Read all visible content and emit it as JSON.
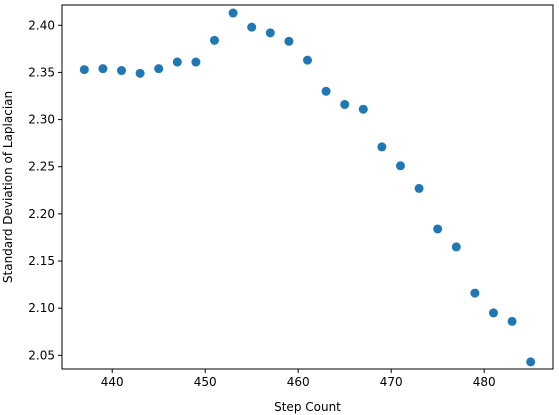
{
  "chart_data": {
    "type": "scatter",
    "title": "",
    "xlabel": "Step Count",
    "ylabel": "Standard Deviation of Laplacian",
    "xlim": [
      434.6,
      487.4
    ],
    "ylim": [
      2.0355,
      2.4215
    ],
    "xticks": [
      440,
      450,
      460,
      470,
      480
    ],
    "xtick_labels": [
      "440",
      "450",
      "460",
      "470",
      "480"
    ],
    "yticks": [
      2.05,
      2.1,
      2.15,
      2.2,
      2.25,
      2.3,
      2.35,
      2.4
    ],
    "ytick_labels": [
      "2.05",
      "2.10",
      "2.15",
      "2.20",
      "2.25",
      "2.30",
      "2.35",
      "2.40"
    ],
    "grid": false,
    "marker_color": "#1f77b4",
    "series": [
      {
        "x": [
          437,
          439,
          441,
          443,
          445,
          447,
          449,
          451,
          453,
          455,
          457,
          459,
          461,
          463,
          465,
          467,
          469,
          471,
          473,
          475,
          477,
          479,
          481,
          483,
          485
        ],
        "values": [
          2.353,
          2.354,
          2.352,
          2.349,
          2.354,
          2.361,
          2.361,
          2.384,
          2.413,
          2.398,
          2.392,
          2.383,
          2.363,
          2.33,
          2.316,
          2.311,
          2.271,
          2.251,
          2.227,
          2.184,
          2.165,
          2.116,
          2.095,
          2.086,
          2.043
        ]
      }
    ]
  }
}
